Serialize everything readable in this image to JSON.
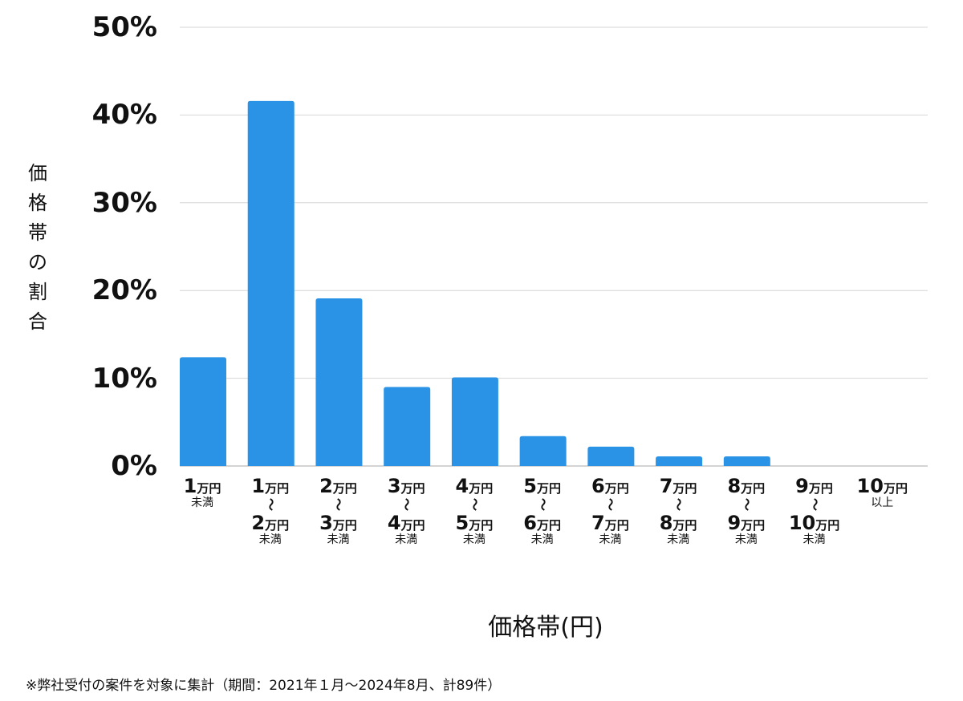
{
  "chart_data": {
    "type": "bar",
    "xlabel": "価格帯(円)",
    "ylabel": "価格帯の割合",
    "ylim": [
      0,
      50
    ],
    "yticks": [
      "0%",
      "10%",
      "20%",
      "30%",
      "40%",
      "50%"
    ],
    "grid": true,
    "bar_color": "#2b93e6",
    "unit": "万円",
    "tilde": "〜",
    "categories": [
      {
        "from": "1",
        "to": "",
        "suffix": "未満"
      },
      {
        "from": "1",
        "to": "2",
        "suffix": "未満"
      },
      {
        "from": "2",
        "to": "3",
        "suffix": "未満"
      },
      {
        "from": "3",
        "to": "4",
        "suffix": "未満"
      },
      {
        "from": "4",
        "to": "5",
        "suffix": "未満"
      },
      {
        "from": "5",
        "to": "6",
        "suffix": "未満"
      },
      {
        "from": "6",
        "to": "7",
        "suffix": "未満"
      },
      {
        "from": "7",
        "to": "8",
        "suffix": "未満"
      },
      {
        "from": "8",
        "to": "9",
        "suffix": "未満"
      },
      {
        "from": "9",
        "to": "10",
        "suffix": "未満"
      },
      {
        "from": "10",
        "to": "",
        "suffix": "以上"
      }
    ],
    "values": [
      12.4,
      41.6,
      19.1,
      9.0,
      10.1,
      3.4,
      2.2,
      1.1,
      1.1,
      0,
      0
    ]
  },
  "footnote": "※弊社受付の案件を対象に集計（期間：2021年１月〜2024年8月、計89件）"
}
